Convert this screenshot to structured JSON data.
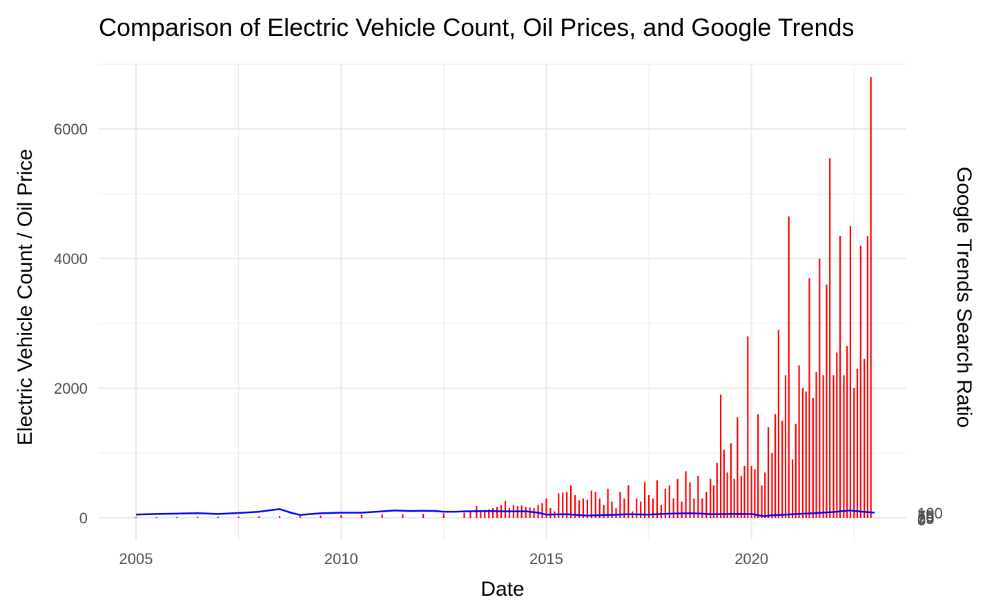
{
  "chart_data": {
    "type": "bar+line",
    "title": "Comparison of Electric Vehicle Count, Oil Prices, and Google Trends",
    "xlabel": "Date",
    "ylabel": "Electric Vehicle Count / Oil Price",
    "ylabel_right": "Google Trends Search Ratio",
    "xlim": [
      2005.0,
      2023.0
    ],
    "ylim": [
      -350,
      7000
    ],
    "x_ticks": [
      2005,
      2010,
      2015,
      2020
    ],
    "x_tick_labels": [
      "2005",
      "2010",
      "2015",
      "2020"
    ],
    "y_ticks": [
      0,
      2000,
      4000,
      6000
    ],
    "y_tick_labels": [
      "0",
      "2000",
      "4000",
      "6000"
    ],
    "right_tick_labels": [
      "0",
      "25",
      "50",
      "75",
      "100"
    ],
    "grid": true,
    "series": [
      {
        "name": "Electric Vehicle Count",
        "kind": "bar",
        "color": "#ff0000",
        "x": [
          2005.0,
          2005.5,
          2006.0,
          2006.5,
          2007.0,
          2007.5,
          2008.0,
          2008.5,
          2009.0,
          2009.5,
          2010.0,
          2010.5,
          2011.0,
          2011.5,
          2012.0,
          2012.5,
          2013.0,
          2013.15,
          2013.3,
          2013.4,
          2013.5,
          2013.6,
          2013.7,
          2013.8,
          2013.9,
          2014.0,
          2014.1,
          2014.2,
          2014.3,
          2014.4,
          2014.5,
          2014.6,
          2014.7,
          2014.8,
          2014.9,
          2015.0,
          2015.1,
          2015.2,
          2015.3,
          2015.4,
          2015.5,
          2015.6,
          2015.7,
          2015.8,
          2015.9,
          2016.0,
          2016.1,
          2016.2,
          2016.3,
          2016.4,
          2016.5,
          2016.6,
          2016.7,
          2016.8,
          2016.9,
          2017.0,
          2017.1,
          2017.2,
          2017.3,
          2017.4,
          2017.5,
          2017.6,
          2017.7,
          2017.8,
          2017.9,
          2018.0,
          2018.1,
          2018.2,
          2018.3,
          2018.4,
          2018.5,
          2018.6,
          2018.7,
          2018.8,
          2018.9,
          2019.0,
          2019.08,
          2019.16,
          2019.25,
          2019.33,
          2019.41,
          2019.5,
          2019.58,
          2019.66,
          2019.75,
          2019.83,
          2019.91,
          2020.0,
          2020.08,
          2020.16,
          2020.25,
          2020.33,
          2020.41,
          2020.5,
          2020.58,
          2020.66,
          2020.75,
          2020.83,
          2020.91,
          2021.0,
          2021.08,
          2021.16,
          2021.25,
          2021.33,
          2021.41,
          2021.5,
          2021.58,
          2021.66,
          2021.75,
          2021.83,
          2021.91,
          2022.0,
          2022.08,
          2022.16,
          2022.25,
          2022.33,
          2022.41,
          2022.5,
          2022.58,
          2022.66,
          2022.75,
          2022.83,
          2022.91
        ],
        "values": [
          8,
          10,
          12,
          15,
          15,
          20,
          25,
          30,
          30,
          35,
          40,
          45,
          50,
          55,
          60,
          70,
          80,
          90,
          180,
          110,
          120,
          130,
          150,
          170,
          200,
          260,
          150,
          200,
          180,
          190,
          170,
          160,
          150,
          200,
          230,
          300,
          150,
          100,
          380,
          390,
          400,
          500,
          350,
          270,
          300,
          280,
          420,
          400,
          300,
          200,
          450,
          250,
          150,
          400,
          300,
          500,
          100,
          300,
          250,
          550,
          350,
          300,
          580,
          200,
          450,
          500,
          300,
          600,
          250,
          720,
          550,
          300,
          650,
          300,
          400,
          600,
          500,
          850,
          1900,
          1050,
          700,
          1150,
          600,
          1550,
          650,
          800,
          2800,
          800,
          750,
          1600,
          500,
          700,
          1400,
          1000,
          1600,
          2900,
          1500,
          2200,
          4650,
          900,
          1450,
          2350,
          2000,
          1950,
          3700,
          1850,
          2250,
          4000,
          2200,
          3600,
          5550,
          2200,
          2550,
          4350,
          2200,
          2650,
          4500,
          2000,
          2300,
          4200,
          2450,
          4350,
          6800
        ]
      },
      {
        "name": "Oil Price",
        "kind": "line",
        "color": "#0000ff",
        "x": [
          2005.0,
          2005.5,
          2006.0,
          2006.5,
          2007.0,
          2007.5,
          2008.0,
          2008.3,
          2008.5,
          2008.8,
          2009.0,
          2009.5,
          2010.0,
          2010.5,
          2011.0,
          2011.3,
          2011.7,
          2012.0,
          2012.3,
          2012.5,
          2012.8,
          2013.0,
          2013.5,
          2014.0,
          2014.5,
          2014.8,
          2015.0,
          2015.5,
          2016.0,
          2016.5,
          2017.0,
          2017.5,
          2018.0,
          2018.5,
          2018.8,
          2019.0,
          2019.5,
          2020.0,
          2020.3,
          2020.5,
          2021.0,
          2021.5,
          2022.0,
          2022.4,
          2022.7,
          2023.0
        ],
        "values": [
          50,
          60,
          65,
          72,
          60,
          75,
          95,
          120,
          135,
          75,
          45,
          70,
          80,
          80,
          100,
          115,
          105,
          110,
          105,
          95,
          95,
          100,
          105,
          100,
          100,
          80,
          50,
          55,
          35,
          45,
          55,
          50,
          65,
          70,
          65,
          55,
          60,
          60,
          25,
          40,
          55,
          70,
          90,
          115,
          95,
          80
        ]
      }
    ]
  }
}
